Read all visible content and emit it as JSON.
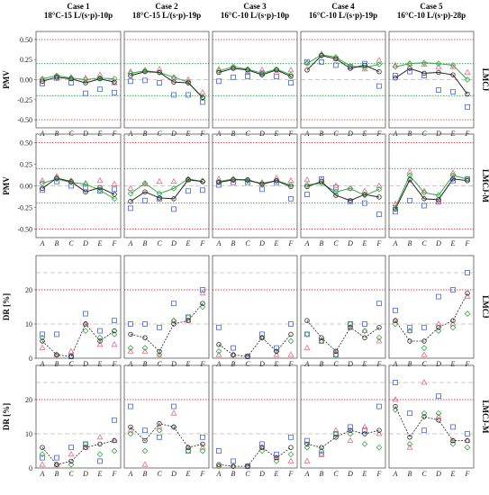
{
  "colors": {
    "red_ref": "#e0404a",
    "green_ref": "#27a34a",
    "gray_ref": "#bbbbbb",
    "line": "#222222",
    "green_series": "#33aa44",
    "blue_series": "#4466dd",
    "pink_series": "#e66b8a",
    "frame": "#555555"
  },
  "chart_data": {
    "type": "line",
    "categories": [
      "A",
      "B",
      "C",
      "D",
      "E",
      "F"
    ],
    "case_titles": [
      [
        "Case 1",
        "18°C-15 L/(s·p)-10p"
      ],
      [
        "Case 2",
        "18°C-15 L/(s·p)-19p"
      ],
      [
        "Case 3",
        "16°C-10 L/(s·p)-10p"
      ],
      [
        "Case 4",
        "16°C-10 L/(s·p)-19p"
      ],
      [
        "Case 5",
        "16°C-10 L/(s·p)-28p"
      ]
    ],
    "rows": [
      {
        "row_label": "LMCJ",
        "ylabel": "PMV",
        "ylim": [
          -0.6,
          0.6
        ],
        "yticks": [
          "0.50",
          "0.25",
          "0.00",
          "-0.25",
          "-0.50"
        ],
        "ytick_values": [
          0.5,
          0.25,
          0,
          -0.25,
          -0.5
        ],
        "red_lines": [
          0.5,
          -0.5
        ],
        "green_lines": [
          0.2,
          -0.2
        ],
        "gray_lines": [
          0
        ],
        "panels": [
          {
            "black": [
              -0.02,
              0.03,
              0.01,
              -0.04,
              0.01,
              -0.03
            ],
            "green": [
              0.01,
              0.05,
              0.02,
              0.0,
              0.02,
              0.01
            ],
            "blue": [
              -0.05,
              0.02,
              -0.04,
              -0.17,
              -0.12,
              -0.16
            ],
            "pink": [
              0.0,
              0.04,
              0.03,
              0.02,
              0.06,
              -0.04
            ]
          },
          {
            "black": [
              0.05,
              0.1,
              0.09,
              -0.03,
              -0.04,
              -0.22
            ],
            "green": [
              0.08,
              0.11,
              0.09,
              0.03,
              -0.03,
              -0.23
            ],
            "blue": [
              -0.02,
              -0.01,
              -0.04,
              -0.19,
              -0.19,
              -0.28
            ],
            "pink": [
              0.1,
              0.12,
              0.13,
              0.02,
              0.0,
              -0.16
            ]
          },
          {
            "black": [
              0.09,
              0.14,
              0.12,
              0.06,
              0.12,
              0.04
            ],
            "green": [
              0.11,
              0.16,
              0.13,
              0.08,
              0.13,
              0.06
            ],
            "blue": [
              -0.02,
              0.03,
              0.04,
              0.08,
              0.04,
              -0.04
            ],
            "pink": [
              0.13,
              0.15,
              0.1,
              0.12,
              0.09,
              0.12
            ]
          },
          {
            "black": [
              0.12,
              0.3,
              0.26,
              0.14,
              0.18,
              0.1
            ],
            "green": [
              0.2,
              0.31,
              0.28,
              0.17,
              0.15,
              0.19
            ],
            "blue": [
              0.22,
              0.22,
              0.18,
              0.16,
              0.2,
              -0.08
            ],
            "pink": [
              0.21,
              0.32,
              0.26,
              0.16,
              0.13,
              0.24
            ]
          },
          {
            "black": [
              0.02,
              0.14,
              0.08,
              0.09,
              0.06,
              -0.18
            ],
            "green": [
              0.16,
              0.2,
              0.21,
              0.2,
              0.18,
              0.0
            ],
            "blue": [
              0.05,
              0.1,
              0.05,
              -0.13,
              -0.15,
              -0.34
            ],
            "pink": [
              0.18,
              0.2,
              0.19,
              0.16,
              0.16,
              0.09
            ]
          }
        ]
      },
      {
        "row_label": "LMCJ-M",
        "ylabel": "PMV",
        "ylim": [
          -0.6,
          0.6
        ],
        "yticks": [
          "0.50",
          "0.25",
          "0.00",
          "-0.25",
          "-0.50"
        ],
        "ytick_values": [
          0.5,
          0.25,
          0,
          -0.25,
          -0.5
        ],
        "red_lines": [
          0.5,
          -0.5
        ],
        "green_lines": [
          0.2,
          -0.2
        ],
        "gray_lines": [
          0
        ],
        "panels": [
          {
            "black": [
              -0.03,
              0.09,
              0.05,
              -0.07,
              -0.02,
              -0.1
            ],
            "green": [
              0.03,
              0.08,
              0.04,
              0.02,
              -0.05,
              -0.15
            ],
            "blue": [
              -0.05,
              0.05,
              0.0,
              -0.02,
              -0.06,
              -0.04
            ],
            "pink": [
              0.06,
              0.11,
              0.06,
              0.03,
              0.06,
              0.02
            ]
          },
          {
            "black": [
              -0.18,
              -0.07,
              -0.14,
              -0.15,
              0.07,
              0.05
            ],
            "green": [
              -0.09,
              0.03,
              -0.09,
              -0.03,
              0.08,
              0.05
            ],
            "blue": [
              -0.26,
              -0.17,
              -0.15,
              -0.27,
              -0.06,
              -0.05
            ],
            "pink": [
              -0.03,
              0.02,
              0.05,
              0.05,
              0.07,
              0.06
            ]
          },
          {
            "black": [
              0.04,
              0.07,
              0.07,
              0.02,
              0.06,
              -0.01
            ],
            "green": [
              0.05,
              0.08,
              0.06,
              0.03,
              0.06,
              0.01
            ],
            "blue": [
              0.01,
              0.04,
              0.04,
              -0.04,
              0.04,
              -0.15
            ],
            "pink": [
              0.08,
              0.06,
              0.07,
              0.04,
              0.09,
              0.06
            ]
          },
          {
            "black": [
              -0.01,
              0.05,
              -0.11,
              -0.17,
              -0.1,
              -0.13
            ],
            "green": [
              0.01,
              0.03,
              -0.07,
              -0.03,
              -0.11,
              -0.04
            ],
            "blue": [
              -0.1,
              0.08,
              -0.02,
              -0.18,
              -0.2,
              -0.33
            ],
            "pink": [
              0.07,
              0.07,
              0.0,
              -0.03,
              -0.06,
              0.0
            ]
          },
          {
            "black": [
              -0.27,
              0.07,
              -0.15,
              -0.16,
              0.08,
              0.06
            ],
            "green": [
              -0.25,
              0.12,
              -0.08,
              -0.11,
              0.12,
              0.08
            ],
            "blue": [
              -0.3,
              -0.17,
              -0.23,
              -0.18,
              0.06,
              0.08
            ],
            "pink": [
              -0.21,
              0.16,
              -0.06,
              -0.19,
              0.15,
              0.08
            ]
          }
        ]
      },
      {
        "row_label": "LMCJ",
        "ylabel": "DR [%]",
        "ylim": [
          0,
          30
        ],
        "yticks": [
          "20",
          "10",
          "0"
        ],
        "ytick_values": [
          20,
          10,
          0
        ],
        "red_lines": [
          20
        ],
        "green_lines": [],
        "gray_lines": [
          10,
          25
        ],
        "panels": [
          {
            "black": [
              5,
              1,
              0.5,
              10,
              5,
              8
            ],
            "green": [
              6,
              1,
              0.5,
              8,
              6,
              7
            ],
            "blue": [
              7,
              7,
              0.5,
              13,
              8,
              11
            ],
            "pink": [
              3,
              1,
              2,
              10,
              4,
              4
            ]
          },
          {
            "black": [
              7,
              6,
              2,
              10,
              11,
              16
            ],
            "green": [
              3,
              3,
              1,
              11,
              12,
              15
            ],
            "blue": [
              10,
              10,
              9,
              16,
              12,
              20
            ],
            "pink": [
              2,
              2,
              0.5,
              11,
              11,
              19
            ]
          },
          {
            "black": [
              4,
              1,
              0.5,
              6,
              2,
              7
            ],
            "green": [
              2,
              1,
              0.5,
              6,
              2,
              5
            ],
            "blue": [
              9,
              3,
              0.5,
              7,
              3,
              10
            ],
            "pink": [
              1,
              1,
              0.5,
              6,
              1,
              1
            ]
          },
          {
            "black": [
              11,
              6,
              2,
              9,
              6,
              9
            ],
            "green": [
              7,
              5,
              1,
              10,
              8,
              6
            ],
            "blue": [
              7,
              5,
              1,
              10,
              10,
              16
            ],
            "pink": [
              3,
              5,
              2,
              9,
              8,
              5
            ]
          },
          {
            "black": [
              11,
              5,
              5,
              9,
              11,
              19
            ],
            "green": [
              10,
              8,
              3,
              8,
              9,
              13
            ],
            "blue": [
              14,
              9,
              9,
              18,
              20,
              25
            ],
            "pink": [
              11,
              8,
              1,
              10,
              10,
              18
            ]
          }
        ]
      },
      {
        "row_label": "LMCJ-M",
        "ylabel": "DR [%]",
        "ylim": [
          0,
          30
        ],
        "yticks": [
          "20",
          "10",
          "0"
        ],
        "ytick_values": [
          20,
          10,
          0
        ],
        "red_lines": [
          20
        ],
        "green_lines": [],
        "gray_lines": [
          10,
          25
        ],
        "panels": [
          {
            "black": [
              6,
              1,
              2,
              6,
              7,
              8
            ],
            "green": [
              4,
              1,
              1,
              7,
              4,
              5
            ],
            "blue": [
              3,
              3,
              6,
              7,
              2,
              14
            ],
            "pink": [
              1,
              1,
              4,
              6,
              9,
              8
            ]
          },
          {
            "black": [
              12,
              8,
              13,
              12,
              6,
              7
            ],
            "green": [
              10,
              5,
              11,
              12,
              5,
              5
            ],
            "blue": [
              18,
              11,
              9,
              18,
              5,
              9
            ],
            "pink": [
              11,
              1,
              12,
              16,
              6,
              6
            ]
          },
          {
            "black": [
              1,
              0.5,
              0.5,
              6,
              3,
              6
            ],
            "green": [
              0.5,
              0.5,
              0.5,
              5,
              2,
              4
            ],
            "blue": [
              5,
              2,
              0.5,
              7,
              4,
              9
            ],
            "pink": [
              0.5,
              0.5,
              0.5,
              6,
              3,
              2
            ]
          },
          {
            "black": [
              7,
              6,
              9,
              11,
              10,
              11
            ],
            "green": [
              6,
              5,
              10,
              10,
              7,
              6
            ],
            "blue": [
              8,
              4,
              10,
              12,
              11,
              18
            ],
            "pink": [
              2,
              4,
              11,
              8,
              12,
              10
            ]
          },
          {
            "black": [
              18,
              9,
              15,
              14,
              8,
              8
            ],
            "green": [
              17,
              7,
              16,
              16,
              7,
              6
            ],
            "blue": [
              25,
              16,
              11,
              21,
              12,
              10
            ],
            "pink": [
              20,
              6,
              25,
              15,
              8,
              8
            ]
          }
        ]
      }
    ]
  }
}
